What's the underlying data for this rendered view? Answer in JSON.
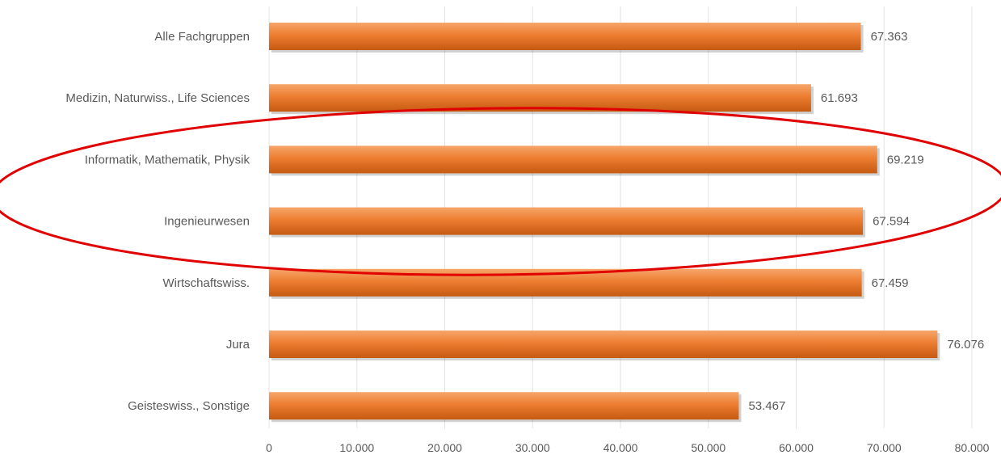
{
  "chart_data": {
    "type": "bar",
    "orientation": "horizontal",
    "categories": [
      "Alle Fachgruppen",
      "Medizin, Naturwiss., Life Sciences",
      "Informatik, Mathematik, Physik",
      "Ingenieurwesen",
      "Wirtschaftswiss.",
      "Jura",
      "Geisteswiss., Sonstige"
    ],
    "values": [
      67363,
      61693,
      69219,
      67594,
      67459,
      76076,
      53467
    ],
    "value_labels": [
      "67.363",
      "61.693",
      "69.219",
      "67.594",
      "67.459",
      "76.076",
      "53.467"
    ],
    "x_ticks": [
      0,
      10000,
      20000,
      30000,
      40000,
      50000,
      60000,
      70000,
      80000
    ],
    "x_tick_labels": [
      "0",
      "10.000",
      "20.000",
      "30.000",
      "40.000",
      "50.000",
      "60.000",
      "70.000",
      "80.000"
    ],
    "xlim": [
      0,
      80000
    ],
    "title": "",
    "xlabel": "",
    "ylabel": "",
    "grid": true,
    "bar_color": "#ed7d31",
    "bar_color_light": "#f6a66a",
    "bar_color_dark": "#c55a11",
    "highlight": {
      "shape": "ellipse",
      "color": "#e00000",
      "encloses": [
        "Informatik, Mathematik, Physik",
        "Ingenieurwesen"
      ]
    }
  }
}
